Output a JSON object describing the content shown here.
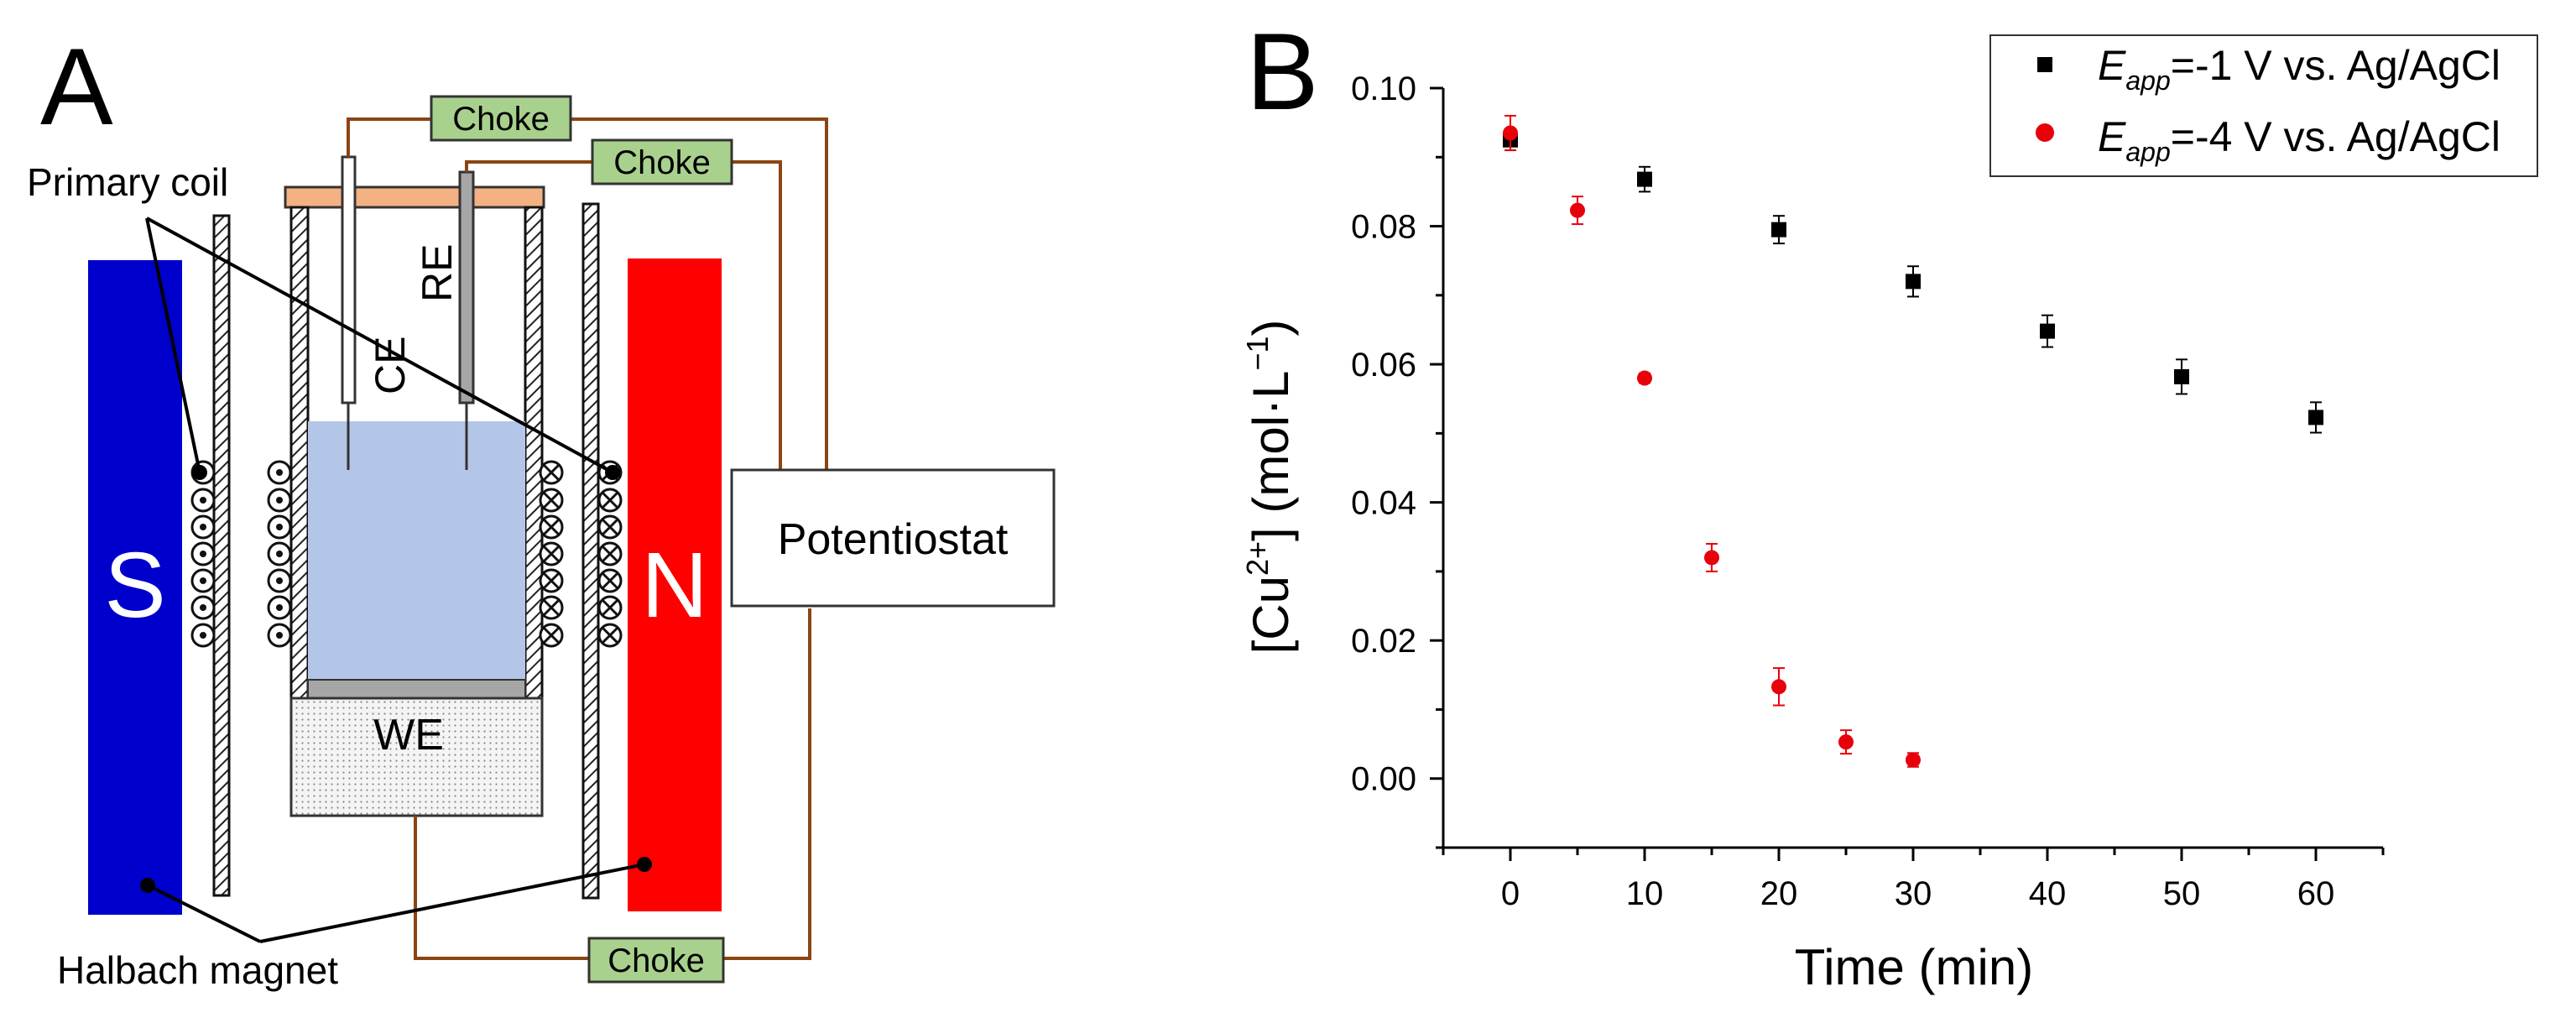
{
  "panel_a": {
    "panel_label": "A",
    "primary_coil_label": "Primary coil",
    "halbach_label": "Halbach magnet",
    "magnet_south": "S",
    "magnet_north": "N",
    "choke_label": "Choke",
    "potentiostat_label": "Potentiostat",
    "ce_label": "CE",
    "re_label": "RE",
    "we_label": "WE",
    "colors": {
      "south_magnet": "#0000cc",
      "north_magnet": "#ff0000",
      "electrolyte": "#b4c6e7",
      "lid": "#f4b183",
      "choke_box": "#a9d18e",
      "wire": "#8b4513"
    }
  },
  "chart_data": {
    "type": "scatter",
    "panel_label": "B",
    "xlabel": "Time (min)",
    "ylabel": "[Cu2+] (mol·L−1)",
    "ylabel_parts": {
      "open": "[Cu",
      "charge": "2+",
      "mid": "] (mol·L",
      "exp": "−1",
      "close": ")"
    },
    "xlim": [
      -5,
      65
    ],
    "ylim": [
      -0.01,
      0.1
    ],
    "xticks": [
      0,
      10,
      20,
      30,
      40,
      50,
      60
    ],
    "xtick_labels": [
      "0",
      "10",
      "20",
      "30",
      "40",
      "50",
      "60"
    ],
    "yticks": [
      0.0,
      0.02,
      0.04,
      0.06,
      0.08,
      0.1
    ],
    "ytick_labels": [
      "0.00",
      "0.02",
      "0.04",
      "0.06",
      "0.08",
      "0.10"
    ],
    "grid": false,
    "legend_position": "top-right",
    "series": [
      {
        "name": "Eapp=-1 V vs. Ag/AgCl",
        "label_main": "E",
        "label_sub": "app",
        "label_rest": "=-1 V vs. Ag/AgCl",
        "marker": "square",
        "color": "#000000",
        "x": [
          0,
          10,
          20,
          30,
          40,
          50,
          60
        ],
        "y": [
          0.0925,
          0.0868,
          0.0795,
          0.072,
          0.0648,
          0.0582,
          0.0523
        ],
        "err": [
          0.0015,
          0.0018,
          0.002,
          0.0022,
          0.0023,
          0.0025,
          0.0022
        ]
      },
      {
        "name": "Eapp=-4 V vs. Ag/AgCl",
        "label_main": "E",
        "label_sub": "app",
        "label_rest": "=-4 V vs. Ag/AgCl",
        "marker": "circle",
        "color": "#e8000b",
        "x": [
          0,
          5,
          10,
          15,
          20,
          25,
          30
        ],
        "y": [
          0.0935,
          0.0823,
          0.058,
          0.032,
          0.0133,
          0.0053,
          0.0027
        ],
        "err": [
          0.0025,
          0.002,
          0.0007,
          0.002,
          0.0027,
          0.0017,
          0.001
        ]
      }
    ]
  }
}
